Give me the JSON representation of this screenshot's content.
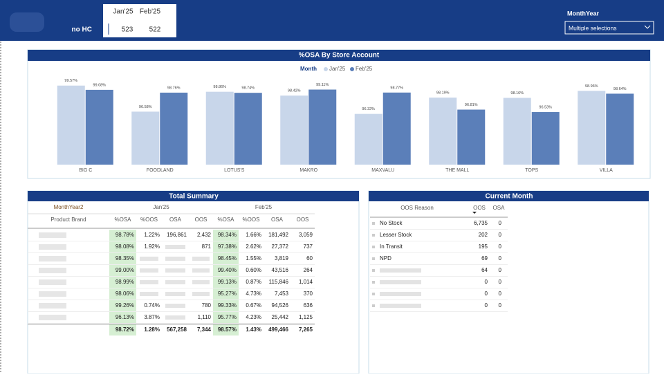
{
  "header": {
    "label": "no HC",
    "months": [
      "Jan'25",
      "Feb'25"
    ],
    "values": [
      "523",
      "522"
    ]
  },
  "slicer": {
    "title": "MonthYear",
    "selection": "Multiple selections"
  },
  "chart_data": {
    "type": "bar",
    "title": "%OSA By Store Account",
    "legend_title": "Month",
    "categories": [
      "BIG C",
      "FOODLAND",
      "LOTUS'S",
      "MAKRO",
      "MAXVALU",
      "THE MALL",
      "TOPS",
      "VILLA"
    ],
    "series": [
      {
        "name": "Jan'25",
        "color": "#c8d6ea",
        "values": [
          99.57,
          96.58,
          98.86,
          98.42,
          96.32,
          98.19,
          98.16,
          98.96
        ],
        "value_labels": [
          "99.57%",
          "96.58%",
          "98.86%",
          "98.42%",
          "96.32%",
          "98.19%",
          "98.16%",
          "98.96%"
        ]
      },
      {
        "name": "Feb'25",
        "color": "#5b7fb9",
        "values": [
          99.08,
          98.76,
          98.74,
          99.11,
          98.77,
          96.81,
          96.53,
          98.64
        ],
        "value_labels": [
          "99.08%",
          "98.76%",
          "98.74%",
          "99.11%",
          "98.77%",
          "96.81%",
          "96.53%",
          "98.64%"
        ]
      }
    ],
    "ylim": [
      90.5,
      100.5
    ]
  },
  "summary": {
    "title": "Total Summary",
    "group_label": "MonthYear2",
    "groups": [
      "Jan'25",
      "Feb'25"
    ],
    "row_header": "Product Brand",
    "columns": [
      "%OSA",
      "%OOS",
      "OSA",
      "OOS",
      "%OSA",
      "%OOS",
      "OSA",
      "OOS"
    ],
    "rows": [
      [
        "98.78%",
        "1.22%",
        "196,861",
        "2,432",
        "98.34%",
        "1.66%",
        "181,492",
        "3,059"
      ],
      [
        "98.08%",
        "1.92%",
        null,
        "871",
        "97.38%",
        "2.62%",
        "27,372",
        "737"
      ],
      [
        "98.35%",
        null,
        null,
        null,
        "98.45%",
        "1.55%",
        "3,819",
        "60"
      ],
      [
        "99.00%",
        null,
        null,
        null,
        "99.40%",
        "0.60%",
        "43,516",
        "264"
      ],
      [
        "98.99%",
        null,
        null,
        null,
        "99.13%",
        "0.87%",
        "115,846",
        "1,014"
      ],
      [
        "98.06%",
        null,
        null,
        null,
        "95.27%",
        "4.73%",
        "7,453",
        "370"
      ],
      [
        "99.26%",
        "0.74%",
        null,
        "780",
        "99.33%",
        "0.67%",
        "94,526",
        "636"
      ],
      [
        "96.13%",
        "3.87%",
        null,
        "1,110",
        "95.77%",
        "4.23%",
        "25,442",
        "1,125"
      ]
    ],
    "total": [
      "98.72%",
      "1.28%",
      "567,258",
      "7,344",
      "98.57%",
      "1.43%",
      "499,466",
      "7,265"
    ]
  },
  "current_month": {
    "title": "Current Month",
    "columns": [
      "OOS Reason",
      "OOS",
      "OSA"
    ],
    "rows": [
      [
        "No Stock",
        "6,735",
        "0"
      ],
      [
        "Lesser Stock",
        "202",
        "0"
      ],
      [
        "In Transit",
        "195",
        "0"
      ],
      [
        "NPD",
        "69",
        "0"
      ],
      [
        null,
        "64",
        "0"
      ],
      [
        null,
        "0",
        "0"
      ],
      [
        null,
        "0",
        "0"
      ],
      [
        null,
        "0",
        "0"
      ]
    ]
  }
}
